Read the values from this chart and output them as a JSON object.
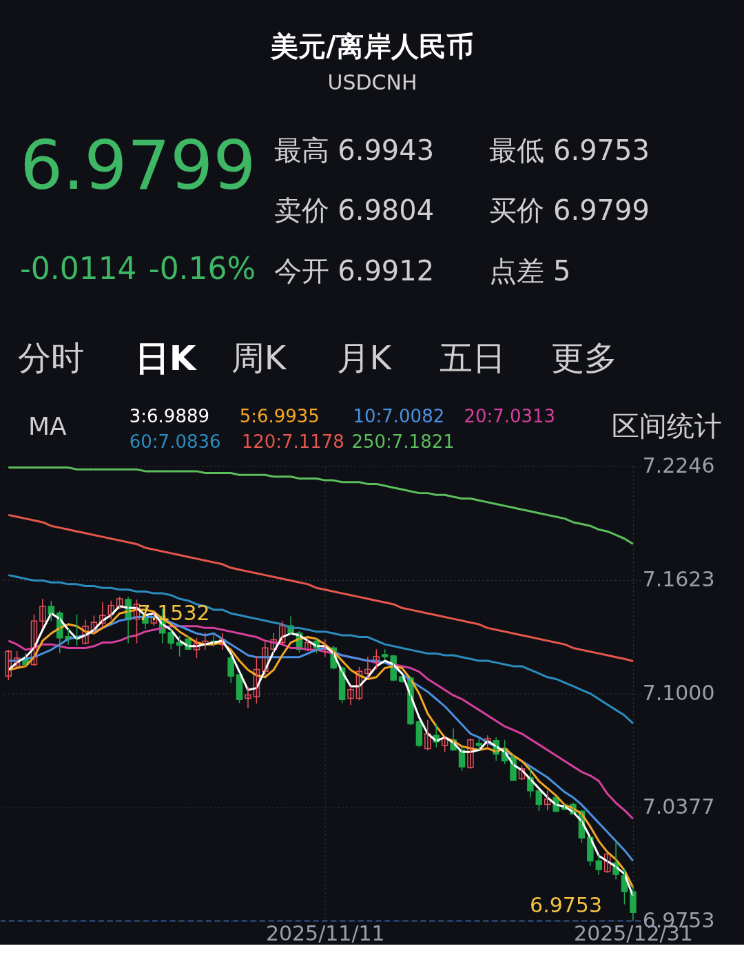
{
  "chart_data": {
    "type": "candlestick",
    "title": "美元/离岸人民币",
    "subtitle": "USDCNH",
    "categories": [
      null,
      null,
      null,
      null,
      null,
      null,
      null,
      null,
      null,
      null,
      null,
      null,
      null,
      null,
      null,
      null,
      null,
      null,
      null,
      null,
      null,
      null,
      null,
      null,
      null,
      null,
      null,
      null,
      null,
      null,
      null,
      null,
      null,
      null,
      null,
      null,
      null,
      "2025/11/11",
      null,
      null,
      null,
      null,
      null,
      null,
      null,
      null,
      null,
      null,
      null,
      null,
      null,
      null,
      null,
      null,
      null,
      null,
      null,
      null,
      null,
      null,
      null,
      null,
      null,
      null,
      null,
      null,
      null,
      null,
      null,
      null,
      null,
      null,
      null,
      "2025/12/31"
    ],
    "ohlc": [
      [
        7.1096,
        7.124,
        7.1074,
        7.1232
      ],
      [
        7.1151,
        7.1232,
        7.1147,
        7.1195
      ],
      [
        7.1188,
        7.1221,
        7.1151,
        7.1159
      ],
      [
        7.1159,
        7.1435,
        7.1151,
        7.1398
      ],
      [
        7.1398,
        7.152,
        7.1361,
        7.1479
      ],
      [
        7.1479,
        7.1509,
        7.1398,
        7.1435
      ],
      [
        7.1442,
        7.1453,
        7.1221,
        7.1306
      ],
      [
        7.1313,
        7.1354,
        7.1269,
        7.1299
      ],
      [
        7.131,
        7.1435,
        7.1262,
        7.1302
      ],
      [
        7.1276,
        7.1405,
        7.1269,
        7.1369
      ],
      [
        7.1335,
        7.1428,
        7.1324,
        7.1391
      ],
      [
        7.1387,
        7.15,
        7.1361,
        7.1428
      ],
      [
        7.1435,
        7.151,
        7.1405,
        7.1483
      ],
      [
        7.1472,
        7.1532,
        7.1464,
        7.152
      ],
      [
        7.1516,
        7.153,
        7.1276,
        7.1405
      ],
      [
        7.1409,
        7.1516,
        7.1276,
        7.149
      ],
      [
        7.1428,
        7.1479,
        7.1354,
        7.1387
      ],
      [
        7.1387,
        7.1446,
        7.1372,
        7.1435
      ],
      [
        7.1424,
        7.1464,
        7.1276,
        7.1332
      ],
      [
        7.1335,
        7.1361,
        7.1243,
        7.1276
      ],
      [
        7.128,
        7.1317,
        7.1203,
        7.1265
      ],
      [
        7.1299,
        7.1317,
        7.124,
        7.1243
      ],
      [
        7.124,
        7.1306,
        7.1195,
        7.1276
      ],
      [
        7.1269,
        7.1335,
        7.124,
        7.1288
      ],
      [
        7.1288,
        7.1332,
        7.1258,
        7.1276
      ],
      [
        7.1269,
        7.1332,
        7.124,
        7.1295
      ],
      [
        7.1195,
        7.1214,
        7.1059,
        7.1096
      ],
      [
        7.1103,
        7.1111,
        7.0948,
        7.0967
      ],
      [
        7.0974,
        7.1037,
        7.0919,
        7.0993
      ],
      [
        7.0982,
        7.1206,
        7.0945,
        7.1133
      ],
      [
        7.1122,
        7.1288,
        7.1096,
        7.1251
      ],
      [
        7.1243,
        7.1332,
        7.1214,
        7.1295
      ],
      [
        7.128,
        7.1398,
        7.1262,
        7.1372
      ],
      [
        7.1372,
        7.1424,
        7.1324,
        7.1335
      ],
      [
        7.1332,
        7.1343,
        7.1225,
        7.1243
      ],
      [
        7.124,
        7.1306,
        7.1232,
        7.128
      ],
      [
        7.1288,
        7.1299,
        7.1221,
        7.1251
      ],
      [
        7.1243,
        7.1299,
        7.1203,
        7.1254
      ],
      [
        7.1251,
        7.1262,
        7.1133,
        7.114
      ],
      [
        7.114,
        7.1151,
        7.0948,
        7.0967
      ],
      [
        7.0974,
        7.1041,
        7.0937,
        7.1022
      ],
      [
        7.0974,
        7.1147,
        7.0963,
        7.1122
      ],
      [
        7.1111,
        7.1203,
        7.1085,
        7.1133
      ],
      [
        7.117,
        7.1243,
        7.1133,
        7.1203
      ],
      [
        7.1214,
        7.1243,
        7.1184,
        7.1203
      ],
      [
        7.1206,
        7.1214,
        7.1066,
        7.1074
      ],
      [
        7.1092,
        7.1103,
        7.1059,
        7.1066
      ],
      [
        7.1085,
        7.1096,
        7.0827,
        7.0834
      ],
      [
        7.0845,
        7.0853,
        7.0705,
        7.0716
      ],
      [
        7.0698,
        7.0856,
        7.0687,
        7.0779
      ],
      [
        7.0771,
        7.0834,
        7.0705,
        7.0735
      ],
      [
        7.0716,
        7.0764,
        7.0679,
        7.0753
      ],
      [
        7.0746,
        7.0808,
        7.0687,
        7.069
      ],
      [
        7.069,
        7.0705,
        7.0576,
        7.0598
      ],
      [
        7.0595,
        7.0753,
        7.0587,
        7.0746
      ],
      [
        7.0727,
        7.0753,
        7.069,
        7.0716
      ],
      [
        7.0727,
        7.0771,
        7.0705,
        7.0753
      ],
      [
        7.0742,
        7.076,
        7.0631,
        7.0668
      ],
      [
        7.0698,
        7.0746,
        7.0613,
        7.0631
      ],
      [
        7.0654,
        7.0668,
        7.0521,
        7.0525
      ],
      [
        7.0532,
        7.0606,
        7.0525,
        7.0587
      ],
      [
        7.0539,
        7.0595,
        7.0429,
        7.0466
      ],
      [
        7.0466,
        7.0469,
        7.0355,
        7.0392
      ],
      [
        7.0392,
        7.0466,
        7.0359,
        7.0421
      ],
      [
        7.0429,
        7.0436,
        7.0348,
        7.0355
      ],
      [
        7.0384,
        7.0392,
        7.0359,
        7.0366
      ],
      [
        7.0392,
        7.0403,
        7.0337,
        7.034
      ],
      [
        7.0355,
        7.0359,
        7.0182,
        7.0208
      ],
      [
        7.0211,
        7.0219,
        7.0053,
        7.0082
      ],
      [
        7.0082,
        7.0115,
        7.0005,
        7.0034
      ],
      [
        7.0023,
        7.0123,
        7.0016,
        7.0119
      ],
      [
        7.0071,
        7.0193,
        6.9979,
        7.0008
      ],
      [
        7.0,
        7.004,
        6.9843,
        6.9913
      ],
      [
        6.9912,
        6.9943,
        6.9753,
        6.9799
      ]
    ],
    "series": [
      {
        "name": "3:6.9889",
        "type": "line",
        "color": "#ffffff",
        "values": [
          7.113,
          7.117,
          7.12,
          7.125,
          7.135,
          7.144,
          7.141,
          7.135,
          7.13,
          7.132,
          7.135,
          7.14,
          7.143,
          7.148,
          7.147,
          7.147,
          7.143,
          7.144,
          7.138,
          7.135,
          7.129,
          7.126,
          7.126,
          7.127,
          7.128,
          7.129,
          7.122,
          7.112,
          7.102,
          7.103,
          7.113,
          7.123,
          7.131,
          7.133,
          7.132,
          7.129,
          7.126,
          7.126,
          7.122,
          7.112,
          7.104,
          7.104,
          7.109,
          7.115,
          7.118,
          7.116,
          7.111,
          7.099,
          7.087,
          7.078,
          7.074,
          7.076,
          7.073,
          7.068,
          7.068,
          7.069,
          7.074,
          7.071,
          7.068,
          7.061,
          7.058,
          7.053,
          7.048,
          7.043,
          7.039,
          7.038,
          7.035,
          7.03,
          7.021,
          7.011,
          7.008,
          7.005,
          7.001,
          6.9889
        ]
      },
      {
        "name": "5:6.9935",
        "type": "line",
        "color": "#f5a623",
        "values": [
          7.113,
          7.114,
          7.115,
          7.12,
          7.129,
          7.133,
          7.136,
          7.138,
          7.137,
          7.134,
          7.133,
          7.136,
          7.139,
          7.144,
          7.145,
          7.146,
          7.146,
          7.145,
          7.141,
          7.138,
          7.134,
          7.131,
          7.128,
          7.127,
          7.127,
          7.128,
          7.124,
          7.118,
          7.113,
          7.11,
          7.109,
          7.113,
          7.121,
          7.128,
          7.13,
          7.131,
          7.13,
          7.127,
          7.123,
          7.118,
          7.113,
          7.11,
          7.108,
          7.109,
          7.114,
          7.115,
          7.114,
          7.108,
          7.1,
          7.089,
          7.082,
          7.076,
          7.074,
          7.071,
          7.07,
          7.069,
          7.07,
          7.068,
          7.07,
          7.066,
          7.063,
          7.058,
          7.052,
          7.048,
          7.044,
          7.039,
          7.037,
          7.034,
          7.027,
          7.019,
          7.013,
          7.009,
          7.003,
          6.9935
        ]
      },
      {
        "name": "10:7.0082",
        "type": "line",
        "color": "#4a90e2",
        "values": [
          7.118,
          7.118,
          7.119,
          7.12,
          7.122,
          7.124,
          7.127,
          7.13,
          7.131,
          7.132,
          7.134,
          7.136,
          7.138,
          7.14,
          7.141,
          7.142,
          7.142,
          7.142,
          7.141,
          7.139,
          7.137,
          7.135,
          7.133,
          7.132,
          7.133,
          7.13,
          7.127,
          7.124,
          7.121,
          7.12,
          7.12,
          7.12,
          7.12,
          7.12,
          7.12,
          7.122,
          7.124,
          7.125,
          7.123,
          7.121,
          7.12,
          7.119,
          7.118,
          7.118,
          7.117,
          7.115,
          7.111,
          7.107,
          7.104,
          7.101,
          7.097,
          7.093,
          7.088,
          7.083,
          7.078,
          7.076,
          7.073,
          7.071,
          7.068,
          7.066,
          7.063,
          7.06,
          7.057,
          7.054,
          7.05,
          7.046,
          7.043,
          7.039,
          7.034,
          7.029,
          7.024,
          7.019,
          7.014,
          7.0082
        ]
      },
      {
        "name": "20:7.0313",
        "type": "line",
        "color": "#d63fa0",
        "values": [
          7.129,
          7.127,
          7.124,
          7.125,
          7.127,
          7.127,
          7.126,
          7.125,
          7.125,
          7.125,
          7.126,
          7.128,
          7.128,
          7.129,
          7.131,
          7.132,
          7.134,
          7.135,
          7.136,
          7.137,
          7.137,
          7.137,
          7.137,
          7.136,
          7.136,
          7.135,
          7.134,
          7.133,
          7.132,
          7.131,
          7.129,
          7.128,
          7.127,
          7.125,
          7.125,
          7.124,
          7.124,
          7.123,
          7.122,
          7.121,
          7.12,
          7.119,
          7.118,
          7.117,
          7.117,
          7.116,
          7.115,
          7.114,
          7.112,
          7.108,
          7.105,
          7.102,
          7.099,
          7.097,
          7.094,
          7.091,
          7.088,
          7.085,
          7.082,
          7.08,
          7.078,
          7.075,
          7.072,
          7.069,
          7.066,
          7.063,
          7.06,
          7.057,
          7.055,
          7.052,
          7.045,
          7.04,
          7.036,
          7.0313
        ]
      },
      {
        "name": "60:7.0836",
        "type": "line",
        "color": "#2b8cbe",
        "values": [
          7.165,
          7.164,
          7.163,
          7.162,
          7.162,
          7.161,
          7.161,
          7.16,
          7.16,
          7.159,
          7.159,
          7.158,
          7.158,
          7.157,
          7.157,
          7.156,
          7.156,
          7.155,
          7.155,
          7.154,
          7.152,
          7.151,
          7.149,
          7.148,
          7.146,
          7.146,
          7.144,
          7.143,
          7.142,
          7.141,
          7.14,
          7.139,
          7.138,
          7.136,
          7.136,
          7.135,
          7.134,
          7.134,
          7.133,
          7.132,
          7.132,
          7.131,
          7.131,
          7.129,
          7.127,
          7.126,
          7.125,
          7.124,
          7.123,
          7.122,
          7.122,
          7.121,
          7.121,
          7.12,
          7.119,
          7.118,
          7.118,
          7.117,
          7.116,
          7.115,
          7.115,
          7.113,
          7.111,
          7.109,
          7.108,
          7.106,
          7.104,
          7.102,
          7.1,
          7.097,
          7.094,
          7.091,
          7.088,
          7.0836
        ]
      },
      {
        "name": "120:7.1178",
        "type": "line",
        "color": "#e5574c",
        "values": [
          7.198,
          7.197,
          7.196,
          7.195,
          7.194,
          7.192,
          7.191,
          7.19,
          7.189,
          7.188,
          7.187,
          7.186,
          7.185,
          7.184,
          7.183,
          7.182,
          7.18,
          7.179,
          7.178,
          7.177,
          7.176,
          7.175,
          7.174,
          7.173,
          7.172,
          7.171,
          7.169,
          7.168,
          7.167,
          7.166,
          7.165,
          7.164,
          7.163,
          7.162,
          7.161,
          7.16,
          7.158,
          7.157,
          7.156,
          7.155,
          7.154,
          7.153,
          7.152,
          7.151,
          7.15,
          7.149,
          7.147,
          7.146,
          7.145,
          7.144,
          7.143,
          7.142,
          7.141,
          7.14,
          7.139,
          7.138,
          7.136,
          7.135,
          7.134,
          7.133,
          7.132,
          7.131,
          7.13,
          7.129,
          7.128,
          7.127,
          7.125,
          7.124,
          7.123,
          7.122,
          7.121,
          7.12,
          7.119,
          7.1178
        ]
      },
      {
        "name": "250:7.1821",
        "type": "line",
        "color": "#5cbf5c",
        "values": [
          7.224,
          7.224,
          7.224,
          7.224,
          7.224,
          7.224,
          7.224,
          7.224,
          7.223,
          7.223,
          7.223,
          7.223,
          7.223,
          7.223,
          7.223,
          7.223,
          7.222,
          7.222,
          7.222,
          7.222,
          7.222,
          7.222,
          7.222,
          7.221,
          7.221,
          7.221,
          7.221,
          7.22,
          7.22,
          7.22,
          7.22,
          7.219,
          7.219,
          7.219,
          7.218,
          7.218,
          7.218,
          7.217,
          7.217,
          7.216,
          7.216,
          7.216,
          7.215,
          7.215,
          7.214,
          7.213,
          7.212,
          7.211,
          7.21,
          7.21,
          7.209,
          7.209,
          7.208,
          7.207,
          7.207,
          7.206,
          7.205,
          7.204,
          7.203,
          7.202,
          7.201,
          7.2,
          7.199,
          7.198,
          7.197,
          7.196,
          7.194,
          7.193,
          7.192,
          7.19,
          7.189,
          7.187,
          7.185,
          7.1821
        ]
      }
    ],
    "ylim": [
      6.9753,
      7.2246
    ],
    "yticks": [
      7.2246,
      7.1623,
      {
        "value": 7.1,
        "label": "7.1000"
      },
      7.0377,
      6.9753
    ],
    "grid": true,
    "marker": "none",
    "line_style": "solid",
    "ref_lines": [
      {
        "axis": "y",
        "value": 6.9753,
        "color": "#2f5596",
        "line_style": "dashed"
      }
    ],
    "annotations": [
      "6.9799",
      "-0.0114",
      "-0.16%",
      "最高 6.9943",
      "最低 6.9753",
      "卖价 6.9804",
      "买价 6.9799",
      "今开 6.9912",
      "点差 5",
      "分时",
      "日K",
      "周K",
      "月K",
      "五日",
      "更多",
      "MA",
      "区间统计",
      {
        "text": "7.1532",
        "y": 7.1532
      },
      {
        "text": "6.9753",
        "y": 6.9753
      }
    ]
  }
}
